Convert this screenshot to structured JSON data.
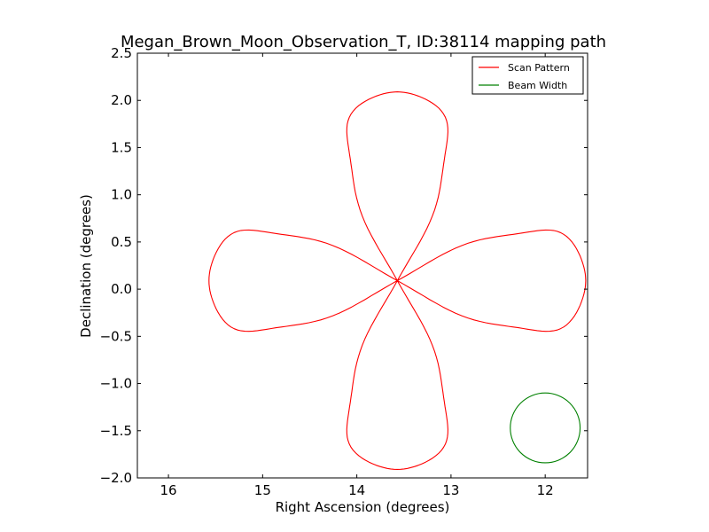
{
  "chart_data": {
    "type": "line",
    "title": "Megan_Brown_Moon_Observation_T, ID:38114 mapping path",
    "xlabel": "Right Ascension (degrees)",
    "ylabel": "Declination (degrees)",
    "xlim": [
      16.33,
      11.55
    ],
    "ylim": [
      -2.0,
      2.5
    ],
    "x_reversed": true,
    "xticks": [
      16,
      15,
      14,
      13,
      12
    ],
    "xtick_labels": [
      "16",
      "15",
      "14",
      "13",
      "12"
    ],
    "yticks": [
      -2.0,
      -1.5,
      -1.0,
      -0.5,
      0.0,
      0.5,
      1.0,
      1.5,
      2.0,
      2.5
    ],
    "ytick_labels": [
      "−2.0",
      "−1.5",
      "−1.0",
      "−0.5",
      "0.0",
      "0.5",
      "1.0",
      "1.5",
      "2.0",
      "2.5"
    ],
    "grid": false,
    "legend_position": "top-right",
    "series": [
      {
        "name": "Scan Pattern",
        "color": "#ff0000",
        "pattern": "four-petal rose",
        "center": [
          13.57,
          0.09
        ],
        "petal_length": 2.0,
        "petal_width": 0.55,
        "start": [
          15.57,
          0.1
        ]
      },
      {
        "name": "Beam Width",
        "color": "#008000",
        "shape": "circle",
        "center": [
          12.0,
          -1.47
        ],
        "radius": 0.37
      }
    ]
  }
}
